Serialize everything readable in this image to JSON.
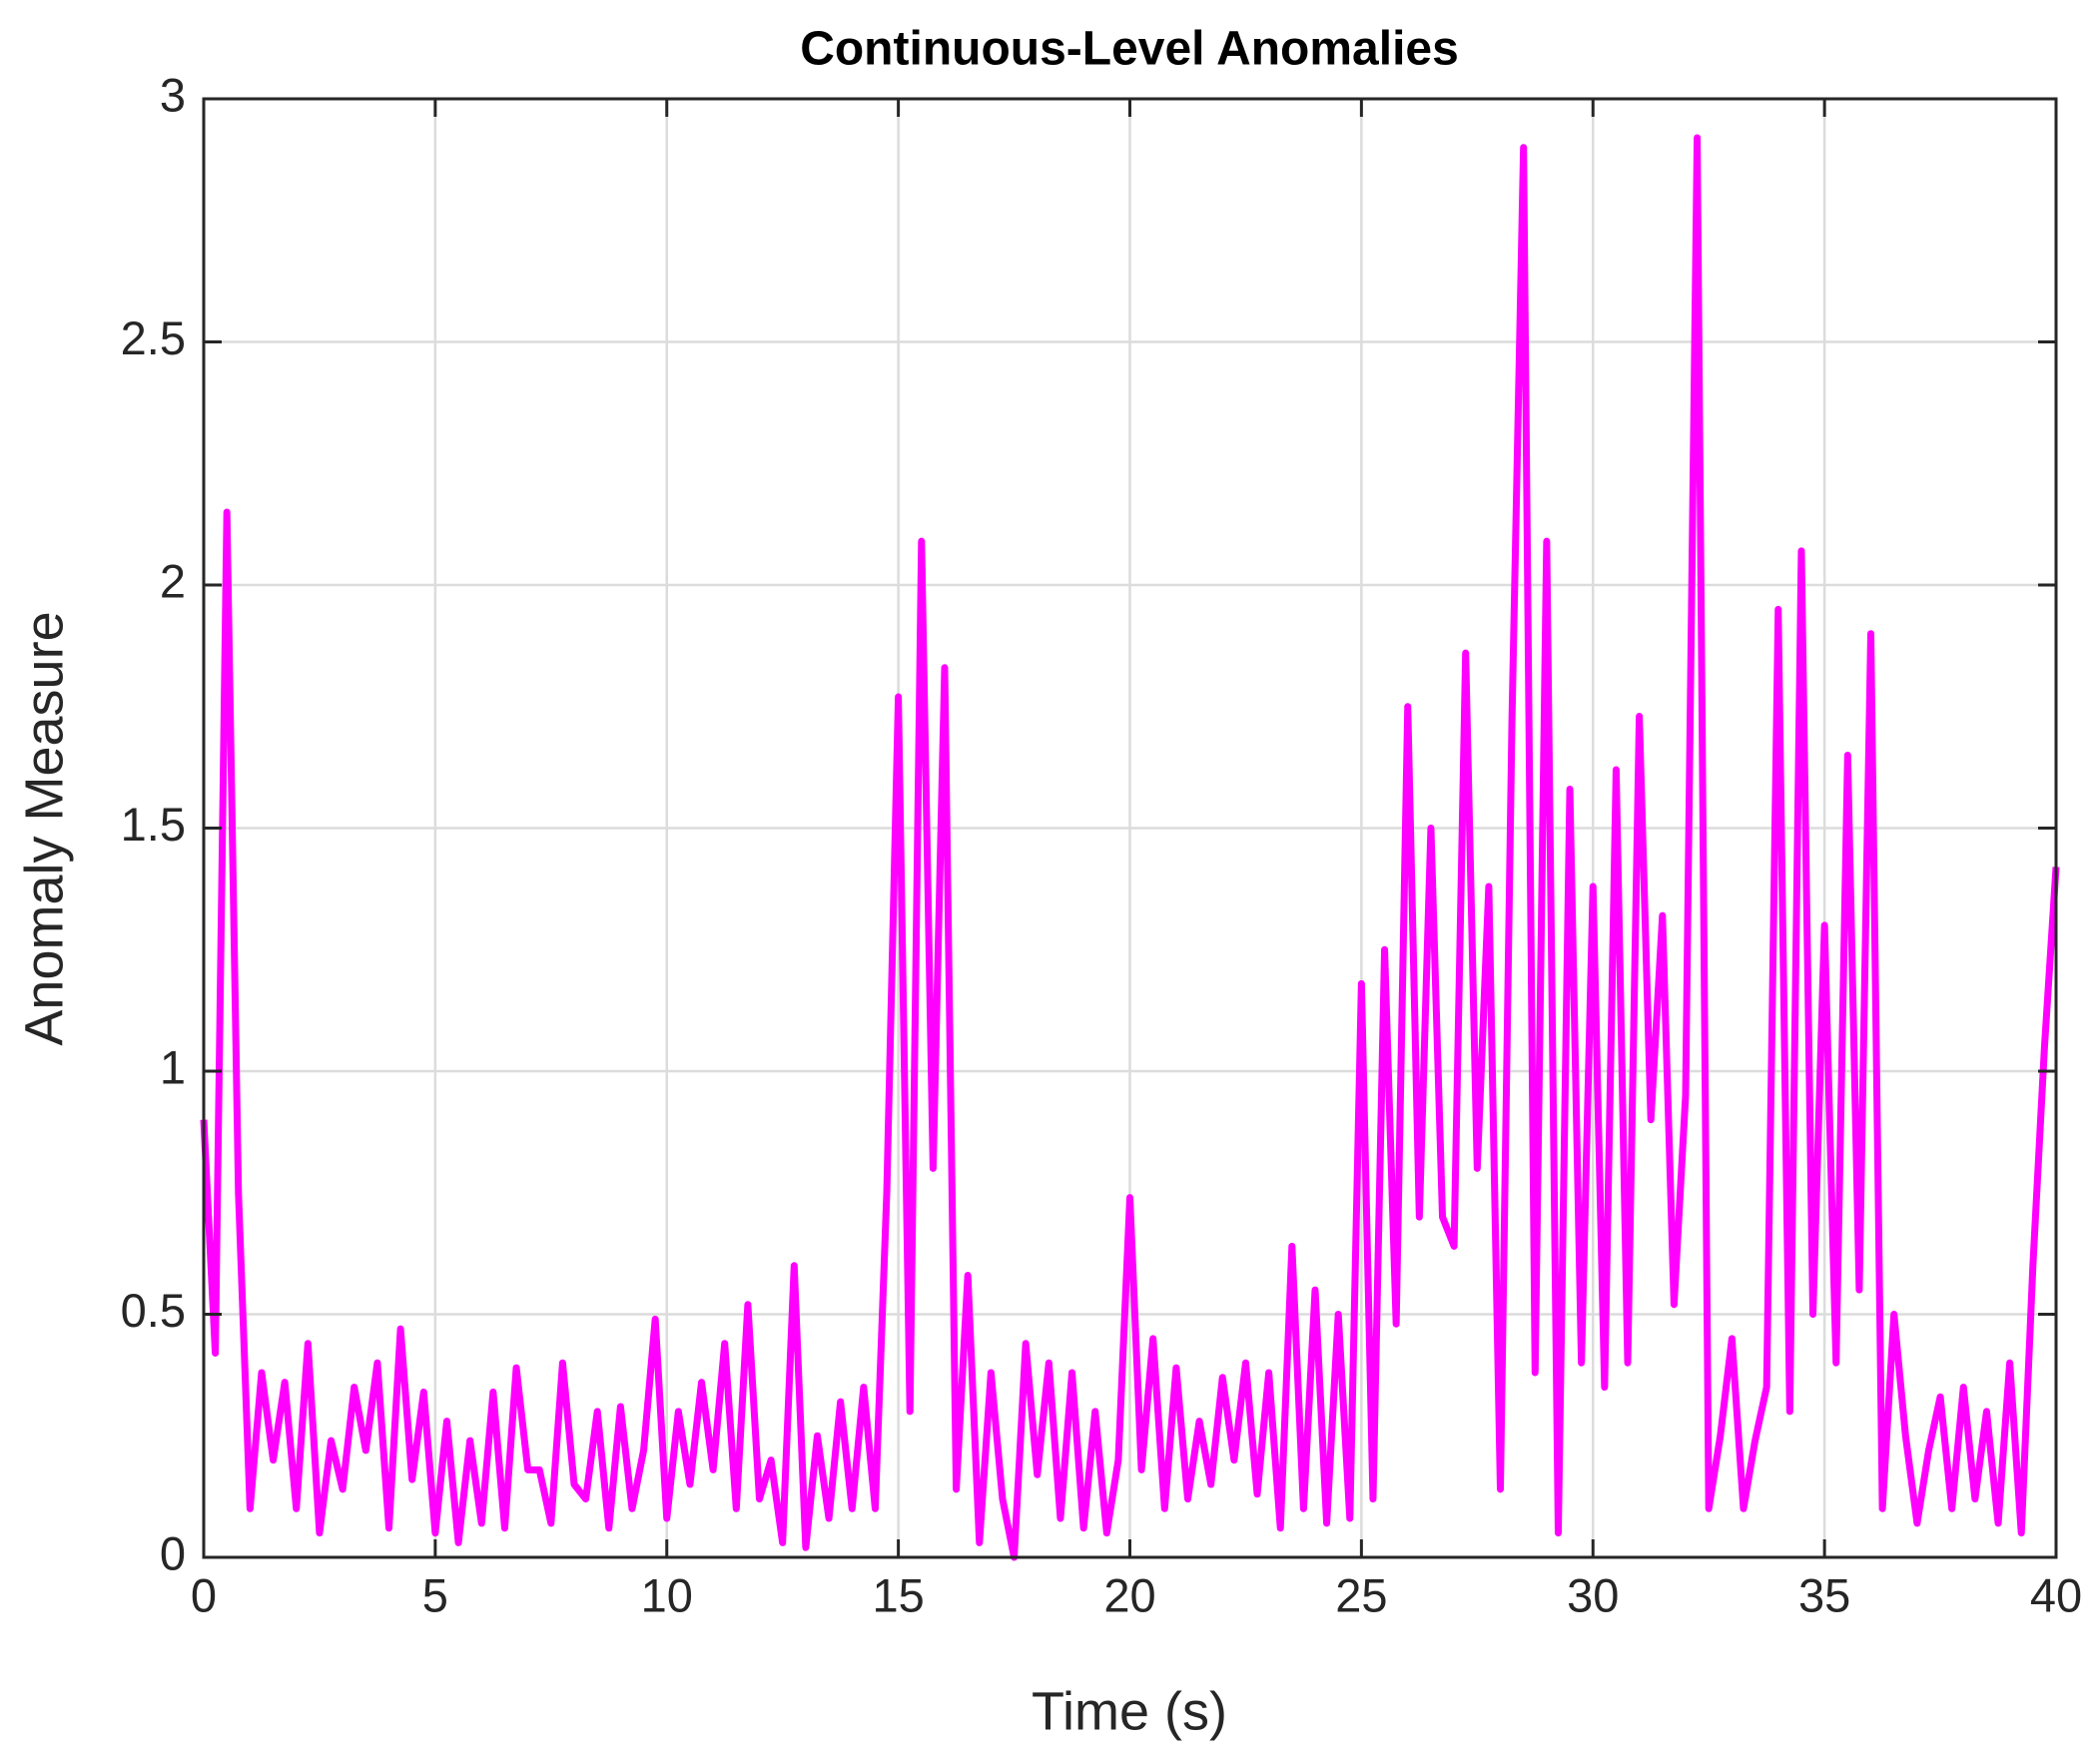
{
  "chart_data": {
    "type": "line",
    "title": "Continuous-Level Anomalies",
    "xlabel": "Time (s)",
    "ylabel": "Anomaly Measure",
    "xlim": [
      0,
      40
    ],
    "ylim": [
      0,
      3
    ],
    "xticks": [
      0,
      5,
      10,
      15,
      20,
      25,
      30,
      35,
      40
    ],
    "yticks": [
      0,
      0.5,
      1,
      1.5,
      2,
      2.5,
      3
    ],
    "grid": true,
    "x": [
      0,
      0.25,
      0.5,
      0.75,
      1,
      1.25,
      1.5,
      1.75,
      2,
      2.25,
      2.5,
      2.75,
      3,
      3.25,
      3.5,
      3.75,
      4,
      4.25,
      4.5,
      4.75,
      5,
      5.25,
      5.5,
      5.75,
      6,
      6.25,
      6.5,
      6.75,
      7,
      7.25,
      7.5,
      7.75,
      8,
      8.25,
      8.5,
      8.75,
      9,
      9.25,
      9.5,
      9.75,
      10,
      10.25,
      10.5,
      10.75,
      11,
      11.25,
      11.5,
      11.75,
      12,
      12.25,
      12.5,
      12.75,
      13,
      13.25,
      13.5,
      13.75,
      14,
      14.25,
      14.5,
      14.75,
      15,
      15.25,
      15.5,
      15.75,
      16,
      16.25,
      16.5,
      16.75,
      17,
      17.25,
      17.5,
      17.75,
      18,
      18.25,
      18.5,
      18.75,
      19,
      19.25,
      19.5,
      19.75,
      20,
      20.25,
      20.5,
      20.75,
      21,
      21.25,
      21.5,
      21.75,
      22,
      22.25,
      22.5,
      22.75,
      23,
      23.25,
      23.5,
      23.75,
      24,
      24.25,
      24.5,
      24.75,
      25,
      25.25,
      25.5,
      25.75,
      26,
      26.25,
      26.5,
      26.75,
      27,
      27.25,
      27.5,
      27.75,
      28,
      28.25,
      28.5,
      28.75,
      29,
      29.25,
      29.5,
      29.75,
      30,
      30.25,
      30.5,
      30.75,
      31,
      31.25,
      31.5,
      31.75,
      32,
      32.25,
      32.5,
      32.75,
      33,
      33.25,
      33.5,
      33.75,
      34,
      34.25,
      34.5,
      34.75,
      35,
      35.25,
      35.5,
      35.75,
      36,
      36.25,
      36.5,
      36.75,
      37,
      37.25,
      37.5,
      37.75,
      38,
      38.25,
      38.5,
      38.75,
      39,
      39.25,
      39.5,
      39.75,
      40
    ],
    "series": [
      {
        "name": "Anomaly Measure",
        "color": "#ff00ff",
        "values": [
          0.9,
          0.42,
          2.15,
          0.75,
          0.1,
          0.38,
          0.2,
          0.36,
          0.1,
          0.44,
          0.05,
          0.24,
          0.14,
          0.35,
          0.22,
          0.4,
          0.06,
          0.47,
          0.16,
          0.34,
          0.05,
          0.28,
          0.03,
          0.24,
          0.07,
          0.34,
          0.06,
          0.39,
          0.18,
          0.18,
          0.07,
          0.4,
          0.15,
          0.12,
          0.3,
          0.06,
          0.31,
          0.1,
          0.22,
          0.49,
          0.08,
          0.3,
          0.15,
          0.36,
          0.18,
          0.44,
          0.1,
          0.52,
          0.12,
          0.2,
          0.03,
          0.6,
          0.02,
          0.25,
          0.08,
          0.32,
          0.1,
          0.35,
          0.1,
          0.75,
          1.77,
          0.3,
          2.09,
          0.8,
          1.83,
          0.14,
          0.58,
          0.03,
          0.38,
          0.12,
          0,
          0.44,
          0.17,
          0.4,
          0.08,
          0.38,
          0.06,
          0.3,
          0.05,
          0.2,
          0.74,
          0.18,
          0.45,
          0.1,
          0.39,
          0.12,
          0.28,
          0.15,
          0.37,
          0.2,
          0.4,
          0.13,
          0.38,
          0.06,
          0.64,
          0.1,
          0.55,
          0.07,
          0.5,
          0.08,
          1.18,
          0.12,
          1.25,
          0.48,
          1.75,
          0.7,
          1.5,
          0.7,
          0.64,
          1.86,
          0.8,
          1.38,
          0.14,
          1.72,
          2.9,
          0.38,
          2.09,
          0.05,
          1.58,
          0.4,
          1.38,
          0.35,
          1.62,
          0.4,
          1.73,
          0.9,
          1.32,
          0.52,
          0.95,
          2.92,
          0.1,
          0.25,
          0.45,
          0.1,
          0.24,
          0.35,
          1.95,
          0.3,
          2.07,
          0.5,
          1.3,
          0.4,
          1.65,
          0.55,
          1.9,
          0.1,
          0.5,
          0.25,
          0.07,
          0.22,
          0.33,
          0.1,
          0.35,
          0.12,
          0.3,
          0.07,
          0.4,
          0.05,
          0.6,
          1.05,
          1.42
        ]
      }
    ]
  }
}
